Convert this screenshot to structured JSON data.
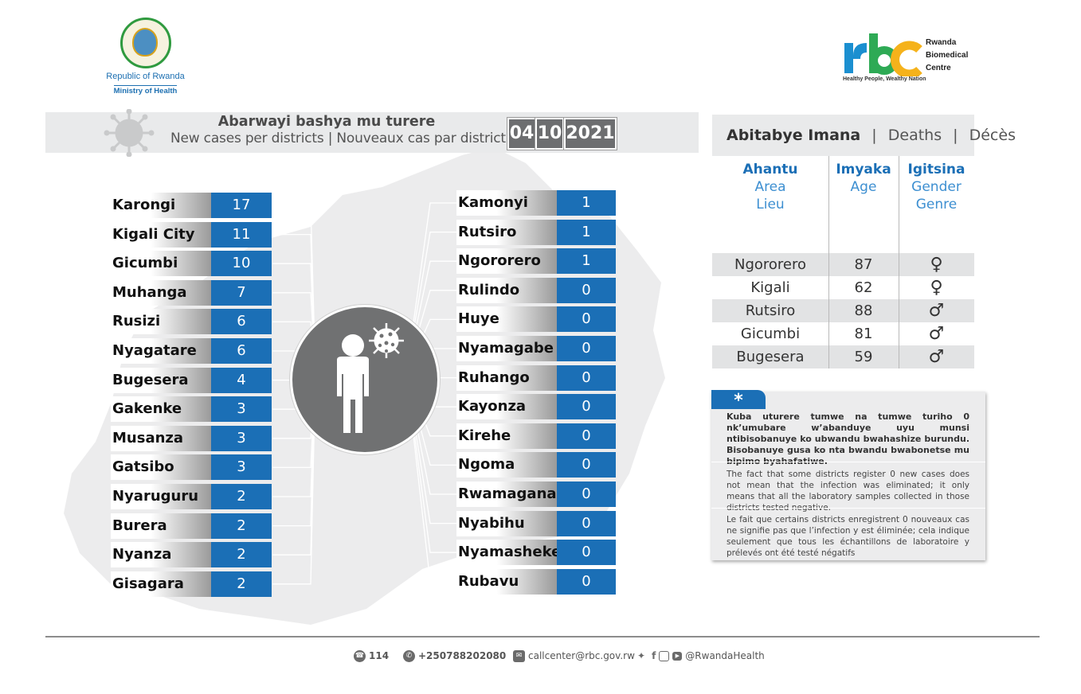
{
  "header": {
    "moh": {
      "line1": "Republic of Rwanda",
      "line2": "Ministry of Health"
    },
    "rbc": {
      "letters": "rbc",
      "name_line1": "Rwanda",
      "name_line2": "Biomedical",
      "name_line3": "Centre",
      "tagline": "Healthy People, Wealthy Nation"
    }
  },
  "title": {
    "main": "Abarwayi bashya mu turere",
    "sub": "New cases per districts  |  Nouveaux cas par district",
    "date": {
      "day": "04",
      "month": "10",
      "year": "2021"
    }
  },
  "districts_left": [
    {
      "name": "Karongi",
      "cases": "17"
    },
    {
      "name": "Kigali City",
      "cases": "11"
    },
    {
      "name": "Gicumbi",
      "cases": "10"
    },
    {
      "name": "Muhanga",
      "cases": "7"
    },
    {
      "name": "Rusizi",
      "cases": "6"
    },
    {
      "name": "Nyagatare",
      "cases": "6"
    },
    {
      "name": "Bugesera",
      "cases": "4"
    },
    {
      "name": "Gakenke",
      "cases": "3"
    },
    {
      "name": "Musanza",
      "cases": "3"
    },
    {
      "name": "Gatsibo",
      "cases": "3"
    },
    {
      "name": "Nyaruguru",
      "cases": "2"
    },
    {
      "name": "Burera",
      "cases": "2"
    },
    {
      "name": "Nyanza",
      "cases": "2"
    },
    {
      "name": "Gisagara",
      "cases": "2"
    }
  ],
  "districts_right": [
    {
      "name": "Kamonyi",
      "cases": "1"
    },
    {
      "name": "Rutsiro",
      "cases": "1"
    },
    {
      "name": "Ngororero",
      "cases": "1"
    },
    {
      "name": "Rulindo",
      "cases": "0"
    },
    {
      "name": "Huye",
      "cases": "0"
    },
    {
      "name": "Nyamagabe",
      "cases": "0"
    },
    {
      "name": "Ruhango",
      "cases": "0"
    },
    {
      "name": "Kayonza",
      "cases": "0"
    },
    {
      "name": "Kirehe",
      "cases": "0"
    },
    {
      "name": "Ngoma",
      "cases": "0"
    },
    {
      "name": "Rwamagana",
      "cases": "0"
    },
    {
      "name": "Nyabihu",
      "cases": "0"
    },
    {
      "name": "Nyamasheke",
      "cases": "0"
    },
    {
      "name": "Rubavu",
      "cases": "0"
    }
  ],
  "deaths": {
    "title_rw": "Abitabye Imana",
    "title_en": "Deaths",
    "title_fr": "Décès",
    "separator": "|",
    "columns": [
      {
        "rw": "Ahantu",
        "en": "Area",
        "fr": "Lieu"
      },
      {
        "rw": "Imyaka",
        "en": "Age",
        "fr": ""
      },
      {
        "rw": "Igitsina",
        "en": "Gender",
        "fr": "Genre"
      }
    ],
    "rows": [
      {
        "area": "Ngororero",
        "age": "87",
        "gender": "♀"
      },
      {
        "area": "Kigali",
        "age": "62",
        "gender": "♀"
      },
      {
        "area": "Rutsiro",
        "age": "88",
        "gender": "♂"
      },
      {
        "area": "Gicumbi",
        "age": "81",
        "gender": "♂"
      },
      {
        "area": "Bugesera",
        "age": "59",
        "gender": "♂"
      }
    ]
  },
  "note": {
    "marker": "*",
    "rw": "Kuba uturere tumwe na tumwe turiho 0 nk’umubare w’abanduye  uyu munsi ntibisobanuye ko ubwandu bwahashize burundu. Bisobanuye gusa ko nta bwandu bwabonetse mu bipimo byahafatiwe.",
    "en": "The fact that some districts register 0 new cases does not mean that the infection was eliminated; it only means that all the laboratory samples collected in those districts tested negative.",
    "fr": "Le fait que certains districts enregistrent 0 nouveaux cas ne signifie pas que l’infection y est éliminée; cela indique seulement que tous les échantillons de laboratoire y prélevés ont été testé négatifs"
  },
  "footer": {
    "hotline": "114",
    "phone": "+250788202080",
    "email": "callcenter@rbc.gov.rw",
    "social": "@RwandaHealth",
    "icons": [
      "phone-icon",
      "whatsapp-icon",
      "email-icon",
      "twitter-icon",
      "facebook-icon",
      "instagram-icon",
      "youtube-icon"
    ]
  },
  "colors": {
    "accent_blue": "#1b6fb6",
    "grey_dark": "#6d6e70",
    "band_grey": "#e9eaeb"
  }
}
